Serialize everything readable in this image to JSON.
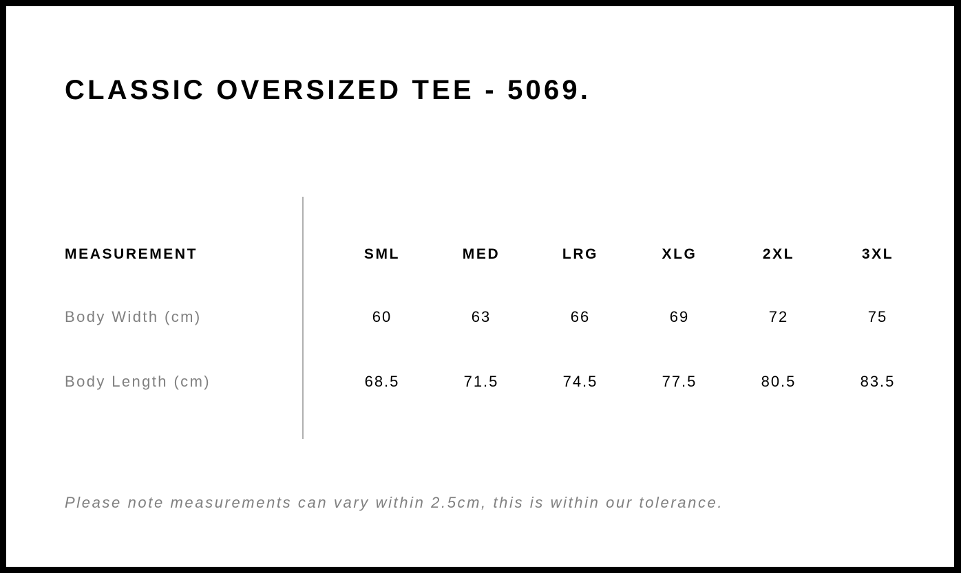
{
  "title": "CLASSIC OVERSIZED TEE - 5069.",
  "table": {
    "header_label": "MEASUREMENT",
    "sizes": [
      "SML",
      "MED",
      "LRG",
      "XLG",
      "2XL",
      "3XL"
    ],
    "rows": [
      {
        "label": "Body Width (cm)",
        "values": [
          "60",
          "63",
          "66",
          "69",
          "72",
          "75"
        ]
      },
      {
        "label": "Body Length (cm)",
        "values": [
          "68.5",
          "71.5",
          "74.5",
          "77.5",
          "80.5",
          "83.5"
        ]
      }
    ]
  },
  "note": "Please note measurements can vary within 2.5cm, this is within our tolerance.",
  "colors": {
    "border": "#000000",
    "label_gray": "#808080",
    "divider": "#b0b0b0"
  }
}
